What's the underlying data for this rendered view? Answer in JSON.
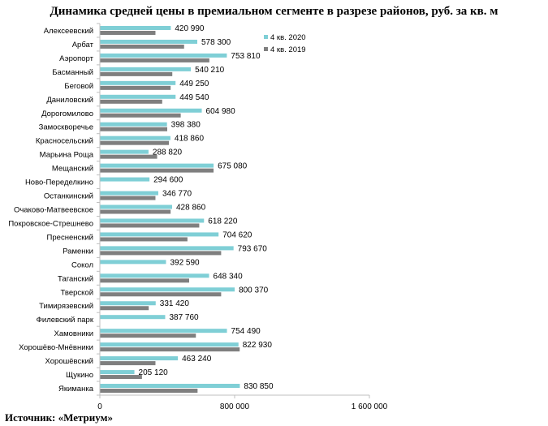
{
  "title": "Динамика средней цены в премиальном сегменте в разрезе районов, руб. за кв. м",
  "source": "Источник: «Метриум»",
  "colors": {
    "series_2020": "#7fcfd6",
    "series_2019": "#7f7f7f",
    "axis": "#bfbfbf"
  },
  "chart_data": {
    "type": "bar",
    "orientation": "horizontal",
    "title": "Динамика средней цены в премиальном сегменте в разрезе районов, руб. за кв. м",
    "categories": [
      "Алексеевский",
      "Арбат",
      "Аэропорт",
      "Басманный",
      "Беговой",
      "Даниловский",
      "Дорогомилово",
      "Замоскворечье",
      "Красносельский",
      "Марьина Роща",
      "Мещанский",
      "Ново-Переделкино",
      "Останкинский",
      "Очаково-Матвеевское",
      "Покровское-Стрешнево",
      "Пресненский",
      "Раменки",
      "Сокол",
      "Таганский",
      "Тверской",
      "Тимирязевский",
      "Филевский парк",
      "Хамовники",
      "Хорошёво-Мнёвники",
      "Хорошёвский",
      "Щукино",
      "Якиманка"
    ],
    "series": [
      {
        "name": "4 кв. 2020",
        "values": [
          420990,
          578300,
          753810,
          540210,
          449250,
          449540,
          604980,
          398380,
          418860,
          288820,
          675080,
          294600,
          346770,
          428860,
          618220,
          704620,
          793670,
          392590,
          648340,
          800370,
          331420,
          387760,
          754490,
          822930,
          463240,
          205120,
          830850
        ]
      },
      {
        "name": "4 кв. 2019",
        "values": [
          330000,
          500000,
          650000,
          430000,
          420000,
          370000,
          480000,
          400000,
          410000,
          340000,
          675000,
          null,
          330000,
          420000,
          590000,
          520000,
          720000,
          null,
          530000,
          720000,
          290000,
          null,
          570000,
          830000,
          330000,
          250000,
          580000
        ]
      }
    ],
    "data_labels": [
      "420 990",
      "578 300",
      "753 810",
      "540 210",
      "449 250",
      "449 540",
      "604 980",
      "398 380",
      "418 860",
      "288 820",
      "675 080",
      "294 600",
      "346 770",
      "428 860",
      "618 220",
      "704 620",
      "793 670",
      "392 590",
      "648 340",
      "800 370",
      "331 420",
      "387 760",
      "754 490",
      "822 930",
      "463 240",
      "205 120",
      "830 850"
    ],
    "xlim": [
      0,
      1600000
    ],
    "xticks": [
      0,
      800000,
      1600000
    ],
    "xtick_labels": [
      "0",
      "800 000",
      "1 600 000"
    ],
    "legend_position": "top-right",
    "grid": false
  }
}
